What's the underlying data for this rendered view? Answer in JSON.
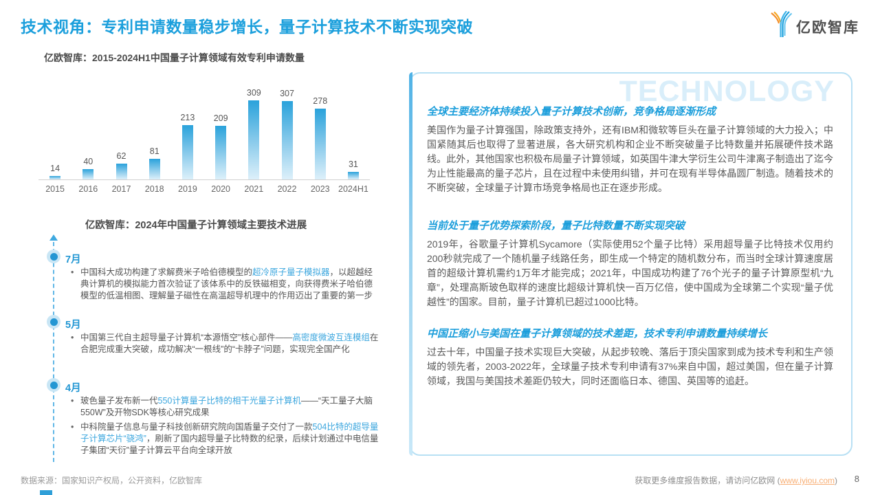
{
  "header": {
    "title": "技术视角：专利申请数量稳步增长，量子计算技术不断实现突破",
    "logo_text": "亿欧智库"
  },
  "chart": {
    "title": "亿欧智库：2015-2024H1中国量子计算领域有效专利申请数量"
  },
  "chart_data": {
    "type": "bar",
    "title": "亿欧智库：2015-2024H1中国量子计算领域有效专利申请数量",
    "categories": [
      "2015",
      "2016",
      "2017",
      "2018",
      "2019",
      "2020",
      "2021",
      "2022",
      "2023",
      "2024H1"
    ],
    "values": [
      14,
      40,
      62,
      81,
      213,
      209,
      309,
      307,
      278,
      31
    ],
    "xlabel": "",
    "ylabel": "",
    "ylim": [
      0,
      309
    ],
    "grid": false,
    "legend": false,
    "bar_gradient": [
      "#2AA2DB",
      "#DDF0FA"
    ]
  },
  "timeline": {
    "title": "亿欧智库：2024年中国量子计算领域主要技术进展",
    "items": [
      {
        "month": "7月",
        "bullets": [
          [
            {
              "text": "中国科大成功构建了求解费米子哈伯德模型的",
              "hl": false
            },
            {
              "text": "超冷原子量子模拟器",
              "hl": true
            },
            {
              "text": "，以超越经典计算机的模拟能力首次验证了该体系中的反铁磁相变，向获得费米子哈伯德模型的低温相图、理解量子磁性在高温超导机理中的作用迈出了重要的第一步",
              "hl": false
            }
          ]
        ]
      },
      {
        "month": "5月",
        "bullets": [
          [
            {
              "text": "中国第三代自主超导量子计算机“本源悟空”核心部件——",
              "hl": false
            },
            {
              "text": "高密度微波互连模组",
              "hl": true
            },
            {
              "text": "在合肥完成重大突破，成功解决“一根线”的“卡脖子”问题，实现完全国产化",
              "hl": false
            }
          ]
        ]
      },
      {
        "month": "4月",
        "bullets": [
          [
            {
              "text": "玻色量子发布新一代",
              "hl": false
            },
            {
              "text": "550计算量子比特的相干光量子计算机",
              "hl": true
            },
            {
              "text": "——“天工量子大脑550W”及开物SDK等核心研究成果",
              "hl": false
            }
          ],
          [
            {
              "text": "中科院量子信息与量子科技创新研究院向国盾量子交付了一款",
              "hl": false
            },
            {
              "text": "504比特的超导量子计算芯片“骁鸿”",
              "hl": true
            },
            {
              "text": "，刷新了国内超导量子比特数的纪录，后续计划通过中电信量子集团“天衍”量子计算云平台向全球开放",
              "hl": false
            }
          ]
        ]
      }
    ]
  },
  "panel": {
    "watermark": "TECHNOLOGY",
    "sections": [
      {
        "heading": "全球主要经济体持续投入量子计算技术创新，竞争格局逐渐形成",
        "body": "美国作为量子计算强国，除政策支持外，还有IBM和微软等巨头在量子计算领域的大力投入；中国紧随其后也取得了显著进展，各大研究机构和企业不断突破量子比特数量并拓展硬件技术路线。此外，其他国家也积极布局量子计算领域，如英国牛津大学衍生公司牛津离子制造出了迄今为止性能最高的量子芯片，且在过程中未使用纠错，并可在现有半导体晶圆厂制造。随着技术的不断突破，全球量子计算市场竞争格局也正在逐步形成。"
      },
      {
        "heading": "当前处于量子优势探索阶段，量子比特数量不断实现突破",
        "body": "2019年，谷歌量子计算机Sycamore（实际使用52个量子比特）采用超导量子比特技术仅用约200秒就完成了一个随机量子线路任务，即生成一个特定的随机数分布，而当时全球计算速度居首的超级计算机需约1万年才能完成；2021年，中国成功构建了76个光子的量子计算原型机“九章”，处理高斯玻色取样的速度比超级计算机快一百万亿倍，使中国成为全球第二个实现“量子优越性”的国家。目前，量子计算机已超过1000比特。"
      },
      {
        "heading": "中国正缩小与美国在量子计算领域的技术差距，技术专利申请数量持续增长",
        "body": "过去十年，中国量子技术实现巨大突破，从起步较晚、落后于顶尖国家到成为技术专利和生产领域的领先者，2003-2022年，全球量子技术专利申请有37%来自中国，超过美国，但在量子计算领域，我国与美国技术差距仍较大，同时还面临日本、德国、英国等的追赶。"
      }
    ]
  },
  "footer": {
    "source": "数据来源：国家知识产权局，公开资料，亿欧智库",
    "cta_prefix": "获取更多维度报告数据，请访问亿欧网 (",
    "cta_link": "www.iyiou.com",
    "cta_suffix": ")",
    "page_number": "8"
  },
  "colors": {
    "accent_blue": "#1B9FDC",
    "highlight_blue": "#3BA6DE",
    "link_orange": "#F8AE73",
    "panel_border": "#B8E0F4",
    "watermark": "#D9EEFA"
  }
}
